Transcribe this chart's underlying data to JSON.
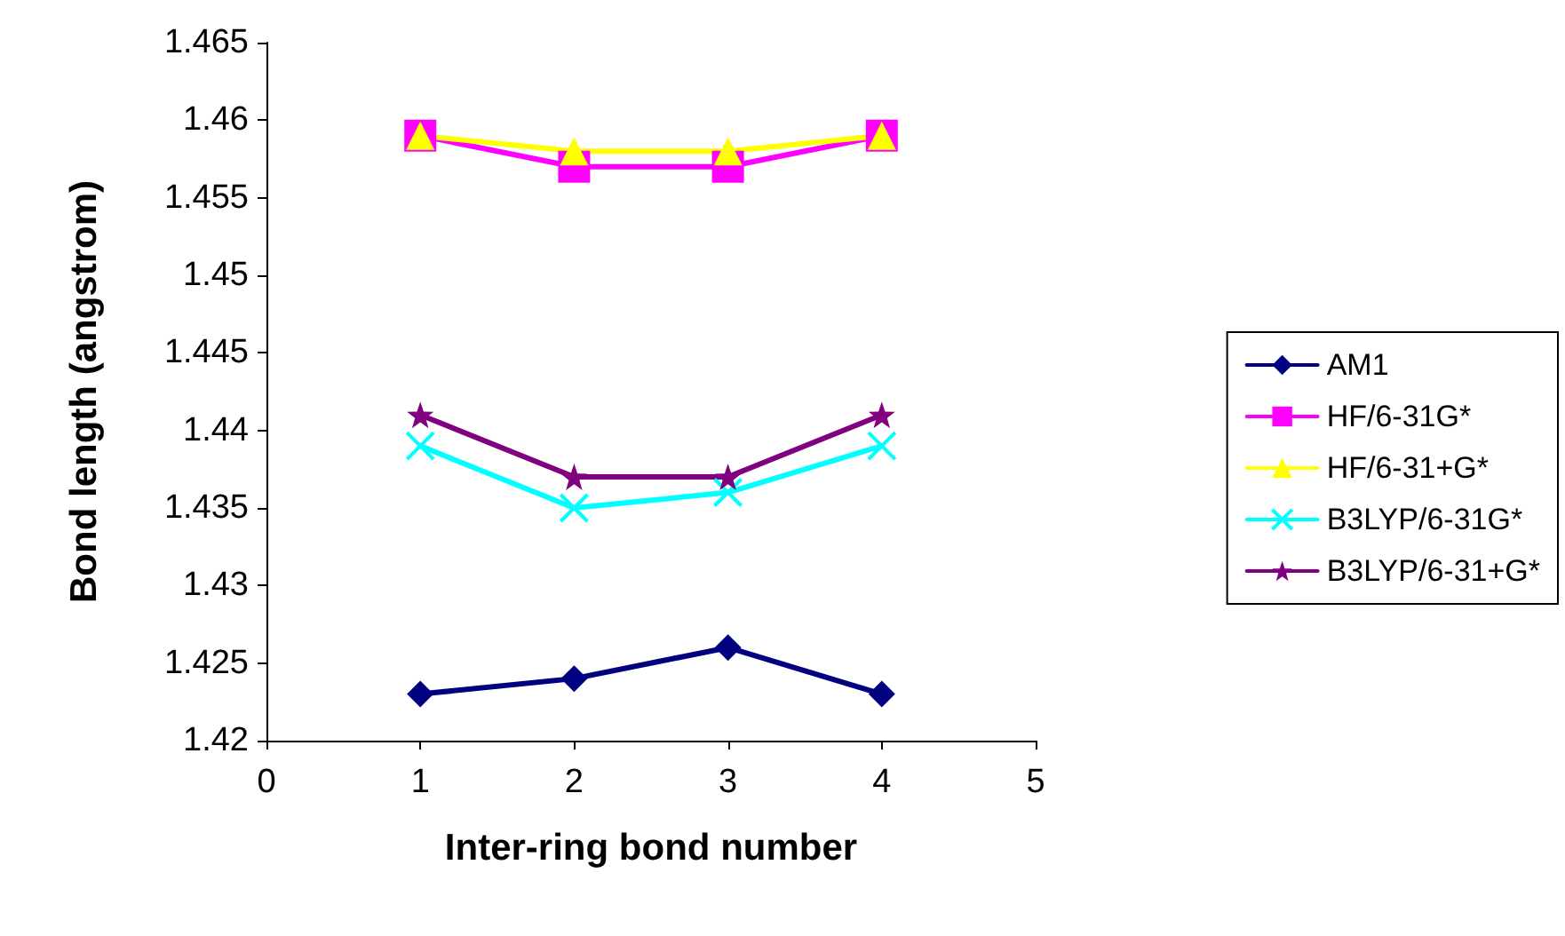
{
  "chart_data": {
    "type": "line",
    "xlabel": "Inter-ring bond number",
    "ylabel": "Bond length (angstrom)",
    "x": [
      1,
      2,
      3,
      4
    ],
    "xlim": [
      0,
      5
    ],
    "xticks": [
      0,
      1,
      2,
      3,
      4,
      5
    ],
    "ylim": [
      1.42,
      1.465
    ],
    "yticks": [
      1.42,
      1.425,
      1.43,
      1.435,
      1.44,
      1.445,
      1.45,
      1.455,
      1.46,
      1.465
    ],
    "grid": false,
    "legend": "right",
    "line_style": "solid",
    "series": [
      {
        "name": "AM1",
        "color": "#000080",
        "marker": "diamond",
        "values": [
          1.423,
          1.424,
          1.426,
          1.423
        ]
      },
      {
        "name": "HF/6-31G*",
        "color": "#ff00ff",
        "marker": "square",
        "values": [
          1.459,
          1.457,
          1.457,
          1.459
        ]
      },
      {
        "name": "HF/6-31+G*",
        "color": "#ffff00",
        "marker": "triangle",
        "values": [
          1.459,
          1.458,
          1.458,
          1.459
        ]
      },
      {
        "name": "B3LYP/6-31G*",
        "color": "#00ffff",
        "marker": "cross",
        "values": [
          1.439,
          1.435,
          1.436,
          1.439
        ]
      },
      {
        "name": "B3LYP/6-31+G*",
        "color": "#800080",
        "marker": "star",
        "values": [
          1.441,
          1.437,
          1.437,
          1.441
        ]
      }
    ]
  }
}
